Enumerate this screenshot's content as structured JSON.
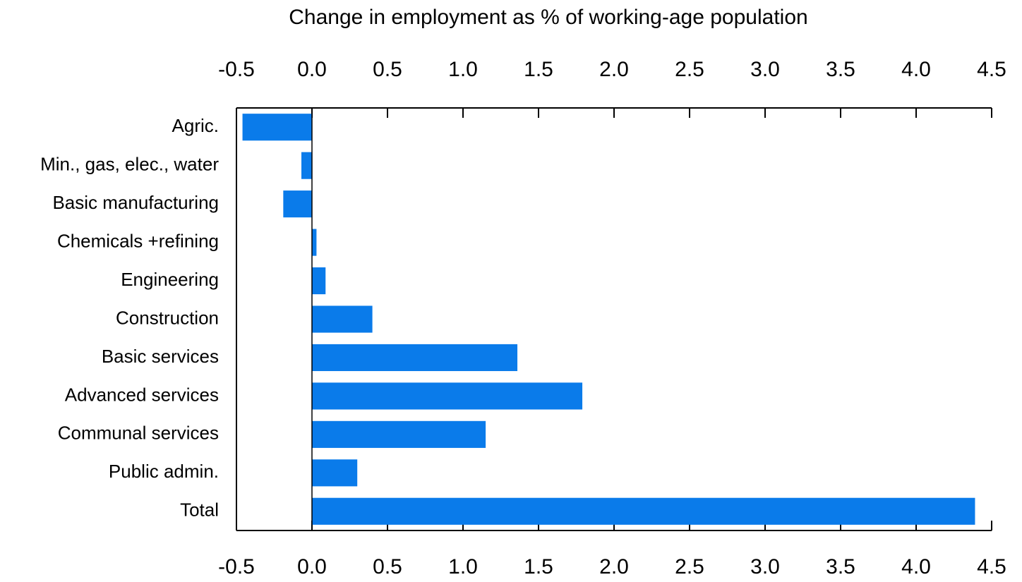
{
  "chart_data": {
    "type": "barh",
    "title": "Change in employment as % of working-age population",
    "categories": [
      "Agric.",
      "Min., gas, elec., water",
      "Basic manufacturing",
      "Chemicals +refining",
      "Engineering",
      "Construction",
      "Basic services",
      "Advanced services",
      "Communal services",
      "Public admin.",
      "Total"
    ],
    "values": [
      -0.46,
      -0.07,
      -0.19,
      0.03,
      0.09,
      0.4,
      1.36,
      1.79,
      1.15,
      0.3,
      4.39
    ],
    "color": "#0a7bea",
    "xlim": [
      -0.5,
      4.5
    ],
    "xticks": [
      -0.5,
      {
        "value": 0,
        "label": "0.0"
      },
      0.5,
      {
        "value": 1,
        "label": "1.0"
      },
      1.5,
      {
        "value": 2,
        "label": "2.0"
      },
      2.5,
      {
        "value": 3,
        "label": "3.0"
      },
      3.5,
      {
        "value": 4,
        "label": "4.0"
      },
      4.5
    ]
  }
}
